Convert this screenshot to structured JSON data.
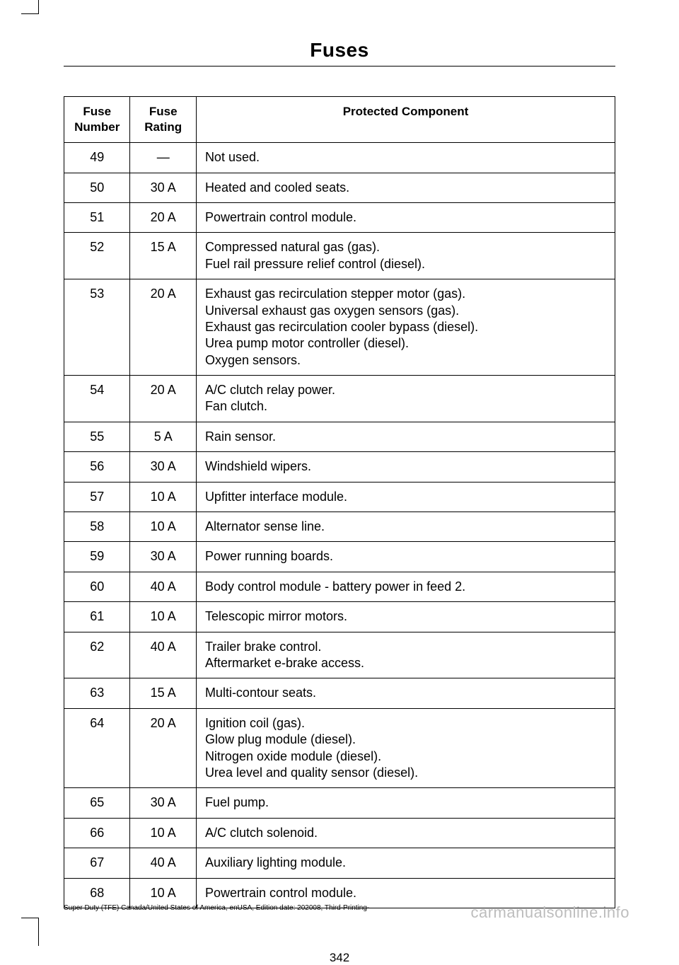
{
  "section_title": "Fuses",
  "table": {
    "headers": {
      "fuse_number": "Fuse\nNumber",
      "fuse_rating": "Fuse\nRating",
      "protected": "Protected Component"
    },
    "rows": [
      {
        "n": "49",
        "r": "—",
        "c": "Not used."
      },
      {
        "n": "50",
        "r": "30 A",
        "c": "Heated and cooled seats."
      },
      {
        "n": "51",
        "r": "20 A",
        "c": "Powertrain control module."
      },
      {
        "n": "52",
        "r": "15 A",
        "c": "Compressed natural gas (gas).\nFuel rail pressure relief control (diesel)."
      },
      {
        "n": "53",
        "r": "20 A",
        "c": "Exhaust gas recirculation stepper motor (gas).\nUniversal exhaust gas oxygen sensors (gas).\nExhaust gas recirculation cooler bypass (diesel).\nUrea pump motor controller (diesel).\nOxygen sensors."
      },
      {
        "n": "54",
        "r": "20 A",
        "c": "A/C clutch relay power.\nFan clutch."
      },
      {
        "n": "55",
        "r": "5 A",
        "c": "Rain sensor."
      },
      {
        "n": "56",
        "r": "30 A",
        "c": "Windshield wipers."
      },
      {
        "n": "57",
        "r": "10 A",
        "c": "Upfitter interface module."
      },
      {
        "n": "58",
        "r": "10 A",
        "c": "Alternator sense line."
      },
      {
        "n": "59",
        "r": "30 A",
        "c": "Power running boards."
      },
      {
        "n": "60",
        "r": "40 A",
        "c": "Body control module - battery power in feed 2."
      },
      {
        "n": "61",
        "r": "10 A",
        "c": "Telescopic mirror motors."
      },
      {
        "n": "62",
        "r": "40 A",
        "c": "Trailer brake control.\nAftermarket e-brake access."
      },
      {
        "n": "63",
        "r": "15 A",
        "c": "Multi-contour seats."
      },
      {
        "n": "64",
        "r": "20 A",
        "c": "Ignition coil (gas).\nGlow plug module (diesel).\nNitrogen oxide module (diesel).\nUrea level and quality sensor (diesel)."
      },
      {
        "n": "65",
        "r": "30 A",
        "c": "Fuel pump."
      },
      {
        "n": "66",
        "r": "10 A",
        "c": "A/C clutch solenoid."
      },
      {
        "n": "67",
        "r": "40 A",
        "c": "Auxiliary lighting module."
      },
      {
        "n": "68",
        "r": "10 A",
        "c": "Powertrain control module."
      }
    ]
  },
  "page_number": "342",
  "footer_left": "Super Duty (TFE) Canada/United States of America, enUSA, Edition date: 202008, Third-Printing-",
  "footer_right": "carmanualsonline.info"
}
